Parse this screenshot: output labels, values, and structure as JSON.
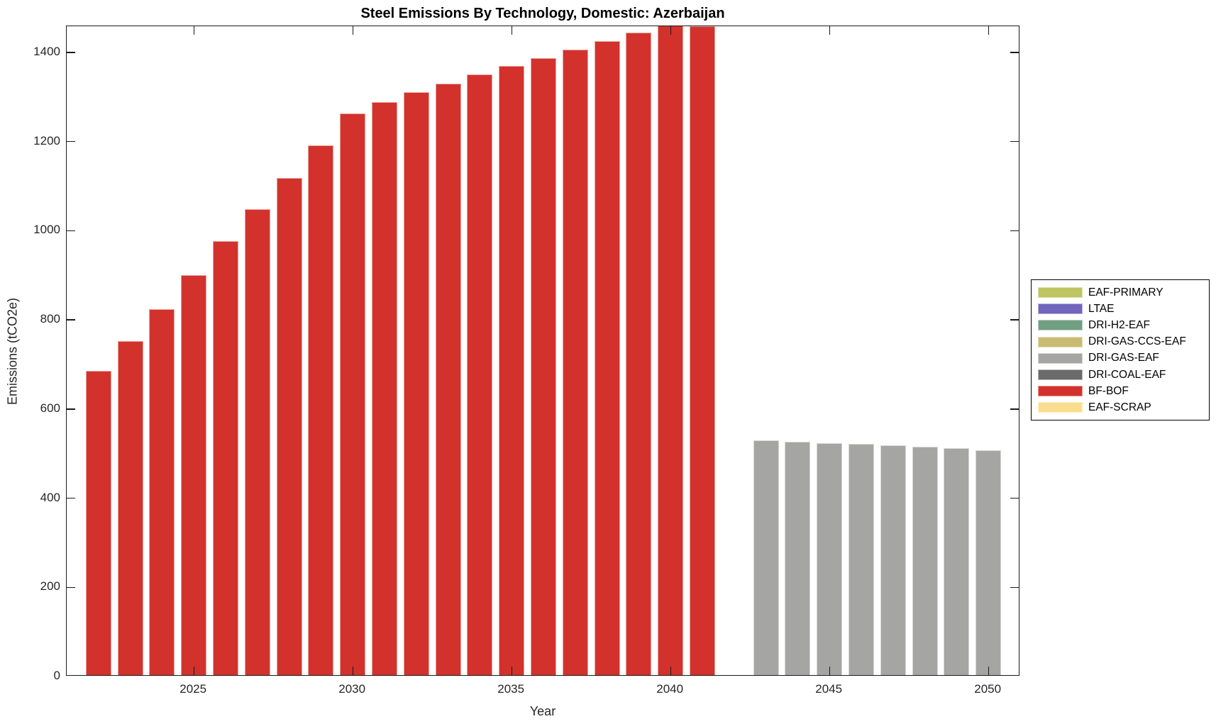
{
  "chart_data": {
    "type": "bar",
    "title": "Steel Emissions By Technology, Domestic: Azerbaijan",
    "xlabel": "Year",
    "ylabel": "Emissions (tCO2e)",
    "xlim": [
      2021,
      2051
    ],
    "ylim": [
      0,
      1459
    ],
    "xticks": [
      2025,
      2030,
      2035,
      2040,
      2045,
      2050
    ],
    "yticks": [
      0,
      200,
      400,
      600,
      800,
      1000,
      1200,
      1400
    ],
    "grid": false,
    "legend_position": "right-outside",
    "bar_width_years": 0.8,
    "legend": [
      {
        "label": "EAF-PRIMARY",
        "color": "#BDC460"
      },
      {
        "label": "LTAE",
        "color": "#7265BD"
      },
      {
        "label": "DRI-H2-EAF",
        "color": "#719F82"
      },
      {
        "label": "DRI-GAS-CCS-EAF",
        "color": "#C9BC72"
      },
      {
        "label": "DRI-GAS-EAF",
        "color": "#A5A5A3"
      },
      {
        "label": "DRI-COAL-EAF",
        "color": "#6B6B6B"
      },
      {
        "label": "BF-BOF",
        "color": "#D2322B"
      },
      {
        "label": "EAF-SCRAP",
        "color": "#FADE8F"
      }
    ],
    "series": [
      {
        "name": "BF-BOF",
        "color": "#D2322B",
        "x": [
          2022,
          2023,
          2024,
          2025,
          2026,
          2027,
          2028,
          2029,
          2030,
          2031,
          2032,
          2033,
          2034,
          2035,
          2036,
          2037,
          2038,
          2039,
          2040,
          2041
        ],
        "values": [
          683,
          750,
          821,
          897,
          974,
          1046,
          1116,
          1189,
          1260,
          1286,
          1308,
          1327,
          1348,
          1366,
          1385,
          1403,
          1423,
          1441,
          1462,
          1456
        ]
      },
      {
        "name": "DRI-GAS-EAF",
        "color": "#A5A5A3",
        "x": [
          2043,
          2044,
          2045,
          2046,
          2047,
          2048,
          2049,
          2050
        ],
        "values": [
          526,
          523,
          521,
          518,
          515,
          512,
          509,
          505
        ]
      }
    ]
  }
}
